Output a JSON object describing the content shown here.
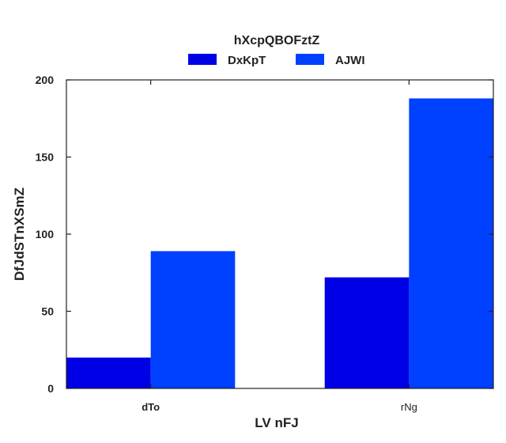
{
  "chart_data": {
    "type": "bar",
    "categories": [
      "dTo",
      "rNg"
    ],
    "series": [
      {
        "name": "DxKpT",
        "values": [
          20,
          72
        ],
        "color": "#0000e6"
      },
      {
        "name": "AJWI",
        "values": [
          89,
          188
        ],
        "color": "#0040ff"
      }
    ],
    "xlabel": "LV nFJ",
    "ylabel": "DfJdSTnXSmZ",
    "ylim": [
      0,
      200
    ],
    "yticks": [
      0,
      50,
      100,
      150,
      200
    ],
    "legend": {
      "title": "hXcpQBOFztZ",
      "placement": "top-center"
    },
    "grid": false
  }
}
